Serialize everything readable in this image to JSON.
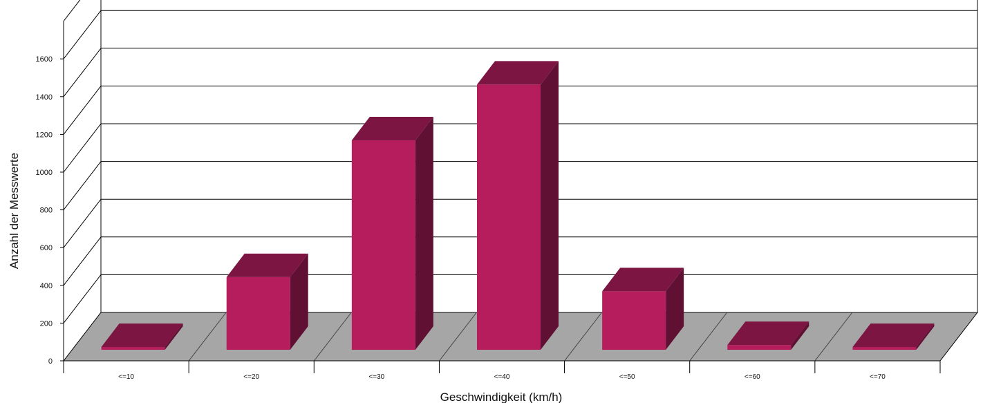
{
  "chart_data": {
    "type": "bar",
    "title": "",
    "xlabel": "Geschwindigkeit (km/h)",
    "ylabel": "Anzahl der Messwerte",
    "categories": [
      "<=10",
      "<=20",
      "<=30",
      "<=40",
      "<=50",
      "<=60",
      "<=70"
    ],
    "values": [
      10,
      385,
      1110,
      1405,
      310,
      25,
      5
    ],
    "ylim": [
      0,
      1800
    ],
    "yticks": [
      "0",
      "200",
      "400",
      "600",
      "800",
      "1000",
      "1200",
      "1400",
      "1600"
    ],
    "grid": true,
    "legend": "none",
    "three_d": true,
    "colors": {
      "bar_front": "#b51d5d",
      "bar_top": "#7c1542",
      "bar_side": "#5f1033",
      "floor": "#a6a6a6",
      "wall": "#ffffff",
      "grid": "#000000"
    }
  }
}
